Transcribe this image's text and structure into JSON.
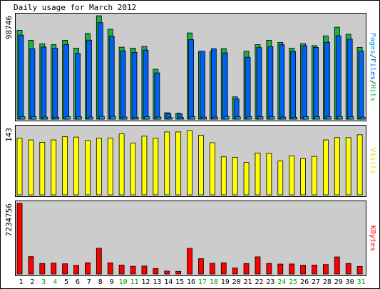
{
  "chart_data": {
    "type": "bar",
    "title": "Daily usage for March 2012",
    "categories": [
      "1",
      "2",
      "3",
      "4",
      "5",
      "6",
      "7",
      "8",
      "9",
      "10",
      "11",
      "12",
      "13",
      "14",
      "15",
      "16",
      "17",
      "18",
      "19",
      "20",
      "21",
      "22",
      "23",
      "24",
      "25",
      "26",
      "27",
      "28",
      "29",
      "30",
      "31"
    ],
    "weekend_days": [
      "3",
      "4",
      "10",
      "11",
      "17",
      "18",
      "24",
      "25",
      "31"
    ],
    "panels": [
      {
        "id": "hits",
        "ylabel_parts": [
          {
            "text": "Pages",
            "color": "#00a0e0"
          },
          {
            "text": "/",
            "color": "#000000"
          },
          {
            "text": "Files",
            "color": "#0060f0"
          },
          {
            "text": "/",
            "color": "#000000"
          },
          {
            "text": "Hits",
            "color": "#20b040"
          }
        ],
        "ymax_label": "98746",
        "ylim": [
          0,
          98746
        ],
        "series": [
          {
            "name": "Hits",
            "color": "#20b040",
            "values": [
              84800,
              75300,
              72000,
              71100,
              75300,
              67800,
              81900,
              98700,
              85800,
              68700,
              67800,
              69400,
              47700,
              6100,
              5700,
              82300,
              64700,
              64800,
              67400,
              21300,
              64800,
              71100,
              75300,
              73300,
              67800,
              72100,
              70200,
              79500,
              87800,
              81100,
              68500
            ]
          },
          {
            "name": "Files",
            "color": "#0060f0",
            "values": [
              80200,
              67200,
              68800,
              67800,
              71200,
              62800,
              75400,
              92100,
              79100,
              65200,
              63800,
              65900,
              44200,
              5400,
              5000,
              75900,
              64900,
              67200,
              63300,
              19300,
              59100,
              68300,
              69200,
              71000,
              64800,
              70100,
              68600,
              73400,
              79600,
              76400,
              64900
            ]
          },
          {
            "name": "Pages",
            "color": "#00a0e0",
            "values": [
              2500,
              2400,
              2000,
              1800,
              2500,
              2300,
              2000,
              2700,
              2600,
              2000,
              1800,
              2400,
              2100,
              1500,
              1400,
              2400,
              1900,
              1900,
              2600,
              2300,
              2500,
              2400,
              2400,
              2000,
              1800,
              2400,
              2300,
              2500,
              2600,
              2300,
              1900
            ]
          }
        ]
      },
      {
        "id": "visits",
        "ylabel_parts": [
          {
            "text": "Visits",
            "color": "#e0e000"
          }
        ],
        "ymax_label": "143",
        "ylim": [
          0,
          143
        ],
        "series": [
          {
            "name": "Visits",
            "color": "#ffff00",
            "values": [
              121,
              117,
              112,
              117,
              124,
              123,
              116,
              121,
              121,
              130,
              110,
              125,
              121,
              134,
              134,
              137,
              127,
              111,
              81,
              80,
              69,
              89,
              88,
              72,
              83,
              77,
              82,
              117,
              122,
              122,
              128
            ]
          }
        ]
      },
      {
        "id": "kbytes",
        "ylabel_parts": [
          {
            "text": "KBytes",
            "color": "#ff0000"
          }
        ],
        "ymax_label": "7234756",
        "ylim": [
          0,
          7234756
        ],
        "series": [
          {
            "name": "KBytes",
            "color": "#ff0000",
            "values": [
              7234756,
              1780000,
              1080000,
              1120000,
              1050000,
              880000,
              1160000,
              2640000,
              1150000,
              920000,
              790000,
              820000,
              560000,
              300000,
              270000,
              2630000,
              1570000,
              1100000,
              1150000,
              620000,
              1070000,
              1760000,
              1080000,
              1020000,
              1030000,
              900000,
              920000,
              970000,
              1750000,
              1080000,
              780000
            ]
          }
        ]
      }
    ],
    "colors": {
      "plot_bg": "#cccccc",
      "frame_bg": "#ffffff",
      "weekday_label": "#000000",
      "weekend_label": "#00a000"
    }
  }
}
